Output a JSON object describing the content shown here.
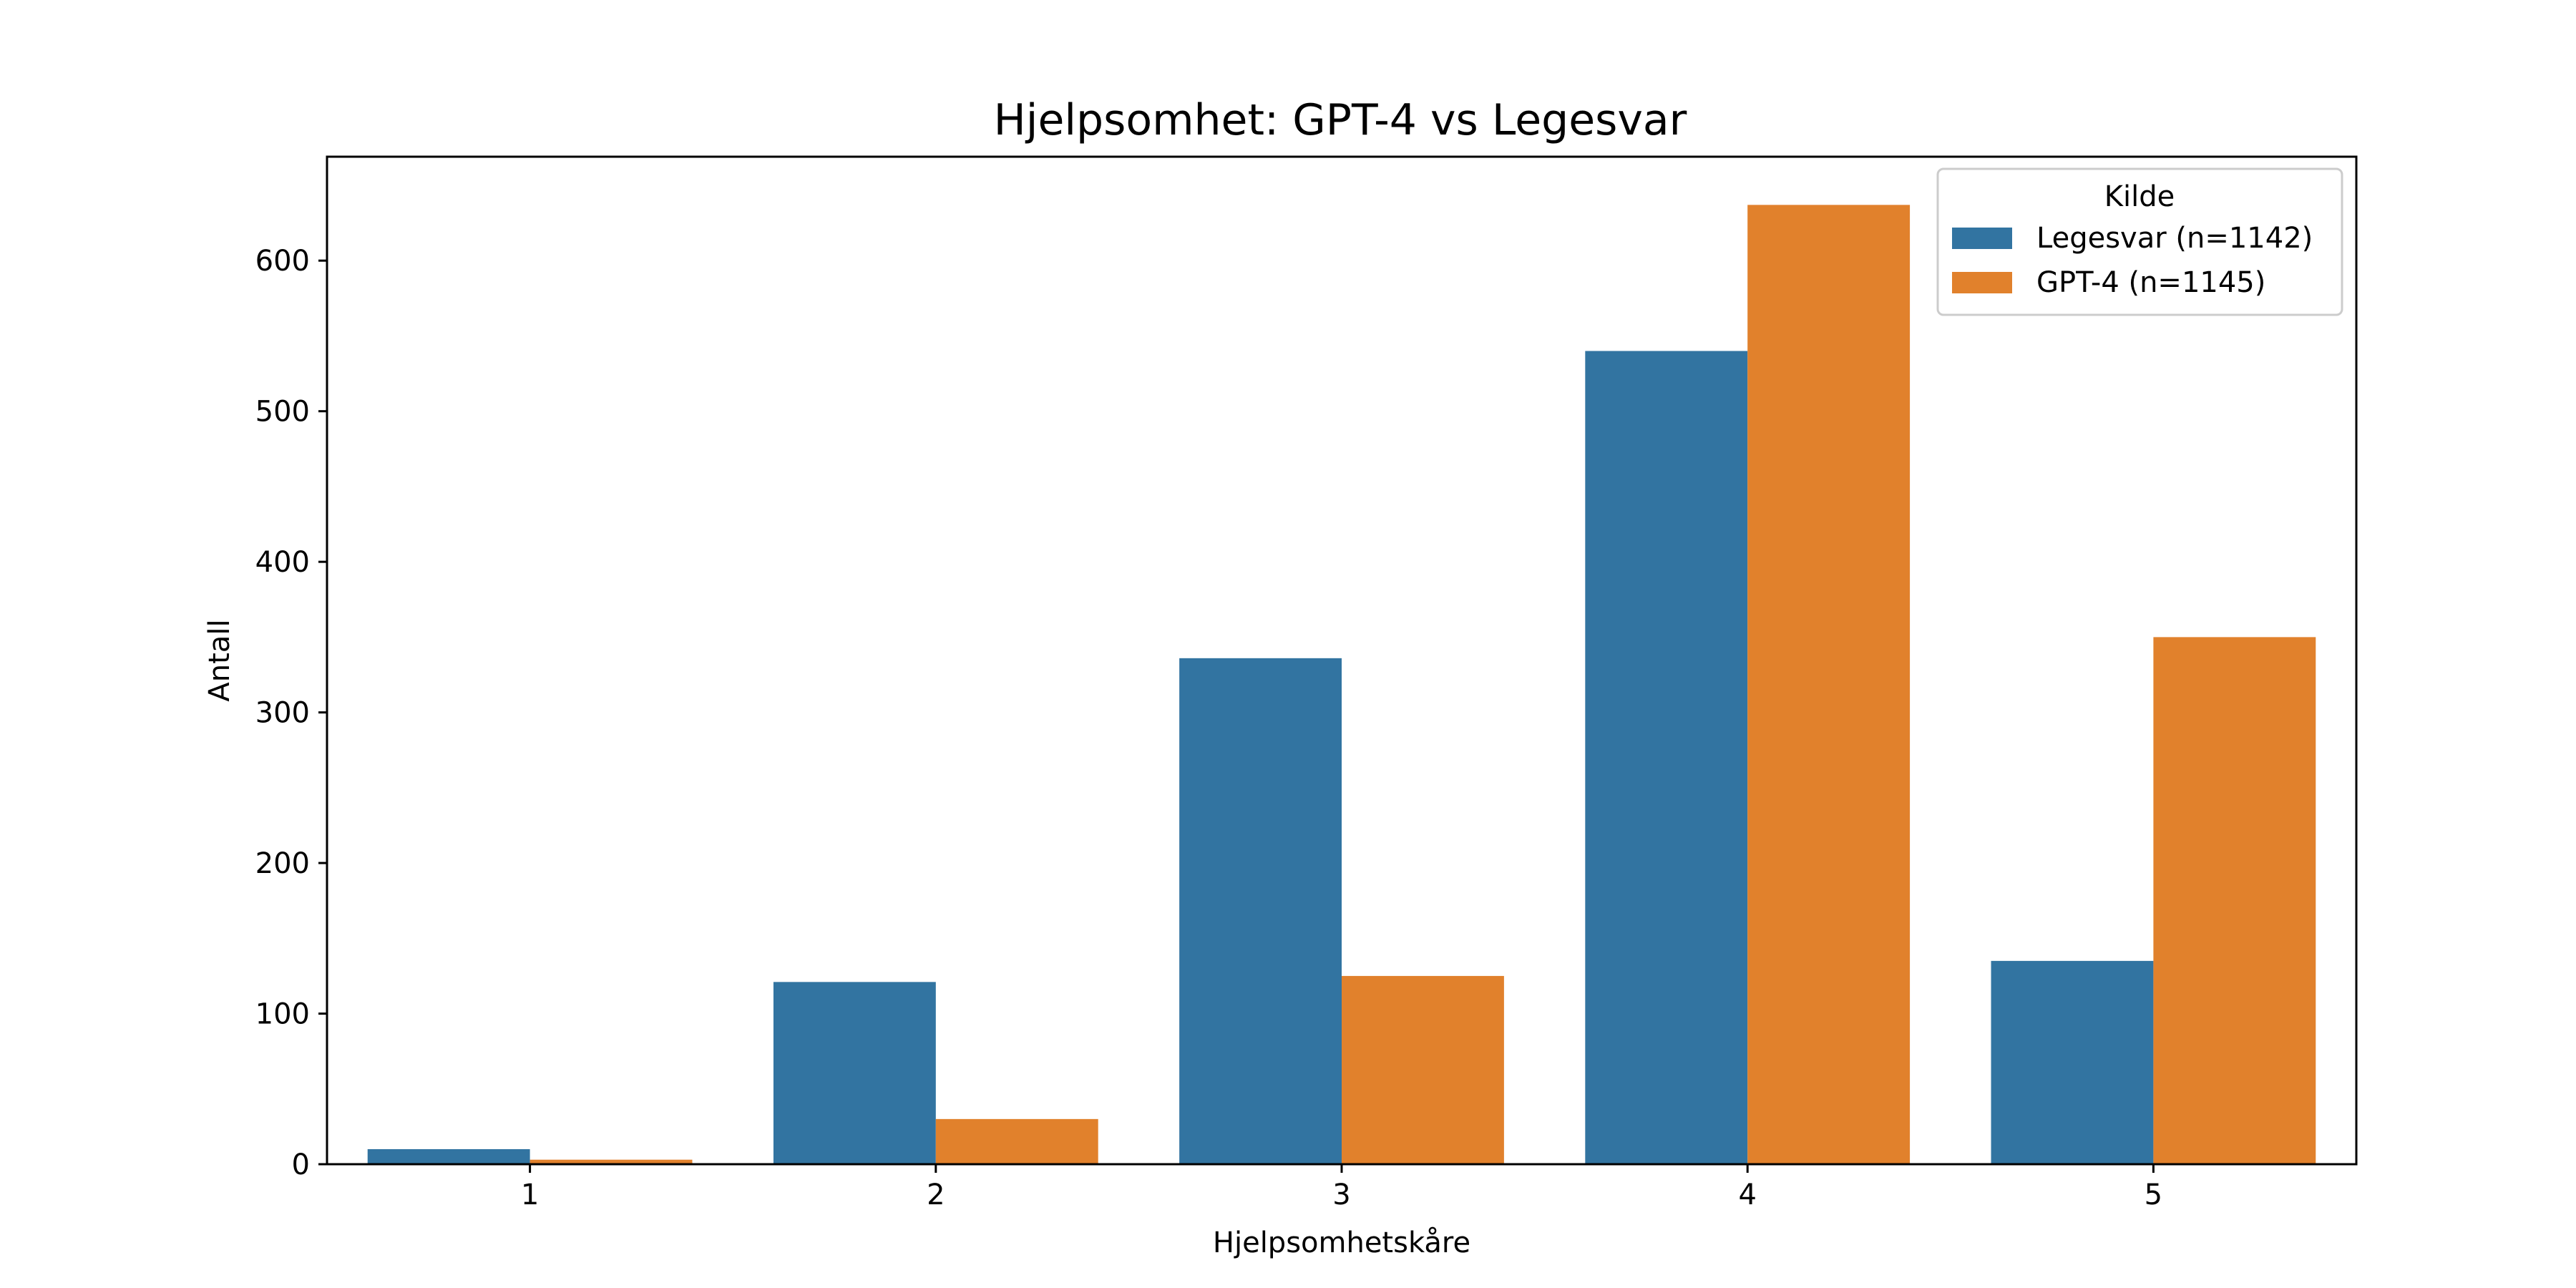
{
  "chart_data": {
    "type": "bar",
    "title": "Hjelpsomhet: GPT-4 vs Legesvar",
    "xlabel": "Hjelpsomhetskåre",
    "ylabel": "Antall",
    "categories": [
      "1",
      "2",
      "3",
      "4",
      "5"
    ],
    "series": [
      {
        "name": "Legesvar (n=1142)",
        "color": "#3274a1",
        "values": [
          10,
          121,
          336,
          540,
          135
        ]
      },
      {
        "name": "GPT-4 (n=1145)",
        "color": "#e1812c",
        "values": [
          3,
          30,
          125,
          637,
          350
        ]
      }
    ],
    "ylim": [
      0,
      669
    ],
    "yticks": [
      0,
      100,
      200,
      300,
      400,
      500,
      600
    ],
    "grid": false,
    "legend": {
      "title": "Kilde",
      "placement": "top-right"
    }
  }
}
